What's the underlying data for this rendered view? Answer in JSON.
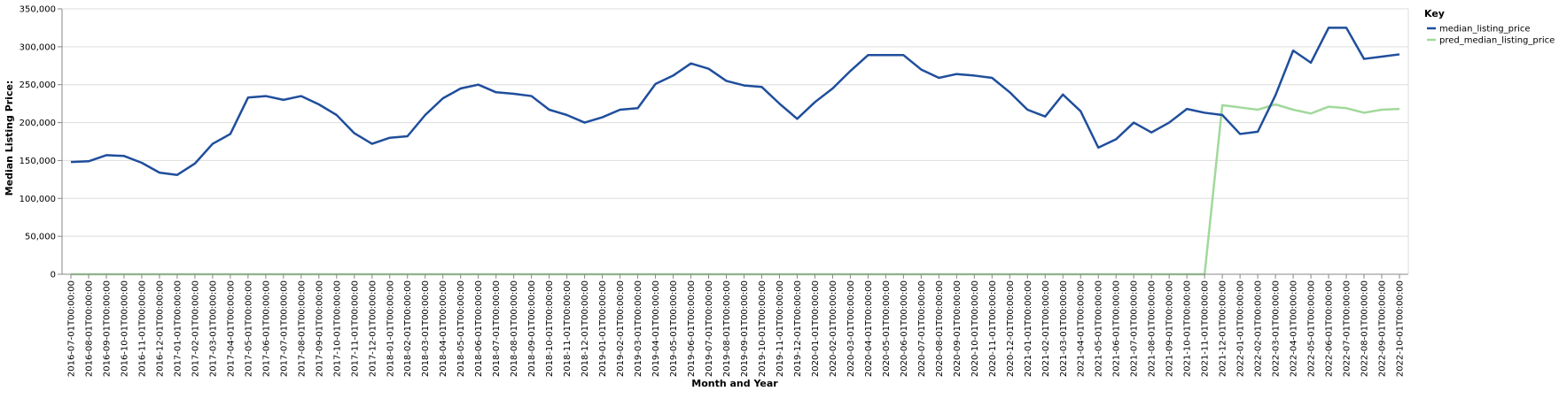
{
  "chart_data": {
    "type": "line",
    "xlabel": "Month and Year",
    "ylabel": "Median Listing Price:",
    "ylim": [
      0,
      350000
    ],
    "yticks": [
      0,
      50000,
      100000,
      150000,
      200000,
      250000,
      300000,
      350000
    ],
    "ytick_labels": [
      "0",
      "50,000",
      "100,000",
      "150,000",
      "200,000",
      "250,000",
      "300,000",
      "350,000"
    ],
    "grid": true,
    "legend": {
      "title": "Key",
      "placement": "top-right"
    },
    "x": [
      "2016-07-01T00:00:00",
      "2016-08-01T00:00:00",
      "2016-09-01T00:00:00",
      "2016-10-01T00:00:00",
      "2016-11-01T00:00:00",
      "2016-12-01T00:00:00",
      "2017-01-01T00:00:00",
      "2017-02-01T00:00:00",
      "2017-03-01T00:00:00",
      "2017-04-01T00:00:00",
      "2017-05-01T00:00:00",
      "2017-06-01T00:00:00",
      "2017-07-01T00:00:00",
      "2017-08-01T00:00:00",
      "2017-09-01T00:00:00",
      "2017-10-01T00:00:00",
      "2017-11-01T00:00:00",
      "2017-12-01T00:00:00",
      "2018-01-01T00:00:00",
      "2018-02-01T00:00:00",
      "2018-03-01T00:00:00",
      "2018-04-01T00:00:00",
      "2018-05-01T00:00:00",
      "2018-06-01T00:00:00",
      "2018-07-01T00:00:00",
      "2018-08-01T00:00:00",
      "2018-09-01T00:00:00",
      "2018-10-01T00:00:00",
      "2018-11-01T00:00:00",
      "2018-12-01T00:00:00",
      "2019-01-01T00:00:00",
      "2019-02-01T00:00:00",
      "2019-03-01T00:00:00",
      "2019-04-01T00:00:00",
      "2019-05-01T00:00:00",
      "2019-06-01T00:00:00",
      "2019-07-01T00:00:00",
      "2019-08-01T00:00:00",
      "2019-09-01T00:00:00",
      "2019-10-01T00:00:00",
      "2019-11-01T00:00:00",
      "2019-12-01T00:00:00",
      "2020-01-01T00:00:00",
      "2020-02-01T00:00:00",
      "2020-03-01T00:00:00",
      "2020-04-01T00:00:00",
      "2020-05-01T00:00:00",
      "2020-06-01T00:00:00",
      "2020-07-01T00:00:00",
      "2020-08-01T00:00:00",
      "2020-09-01T00:00:00",
      "2020-10-01T00:00:00",
      "2020-11-01T00:00:00",
      "2020-12-01T00:00:00",
      "2021-01-01T00:00:00",
      "2021-02-01T00:00:00",
      "2021-03-01T00:00:00",
      "2021-04-01T00:00:00",
      "2021-05-01T00:00:00",
      "2021-06-01T00:00:00",
      "2021-07-01T00:00:00",
      "2021-08-01T00:00:00",
      "2021-09-01T00:00:00",
      "2021-10-01T00:00:00",
      "2021-11-01T00:00:00",
      "2021-12-01T00:00:00",
      "2022-01-01T00:00:00",
      "2022-02-01T00:00:00",
      "2022-03-01T00:00:00",
      "2022-04-01T00:00:00",
      "2022-05-01T00:00:00",
      "2022-06-01T00:00:00",
      "2022-07-01T00:00:00",
      "2022-08-01T00:00:00",
      "2022-09-01T00:00:00",
      "2022-10-01T00:00:00"
    ],
    "series": [
      {
        "name": "median_listing_price",
        "color": "#1f4e9c",
        "values": [
          148000,
          149000,
          157000,
          156000,
          147000,
          134000,
          131000,
          146000,
          172000,
          185000,
          233000,
          235000,
          230000,
          235000,
          224000,
          210000,
          186000,
          172000,
          180000,
          182000,
          210000,
          232000,
          245000,
          250000,
          240000,
          238000,
          235000,
          217000,
          210000,
          200000,
          207000,
          217000,
          219000,
          251000,
          262000,
          278000,
          271000,
          255000,
          249000,
          247000,
          225000,
          205000,
          227000,
          245000,
          268000,
          289000,
          289000,
          289000,
          270000,
          259000,
          264000,
          262000,
          259000,
          240000,
          217000,
          208000,
          237000,
          215000,
          167000,
          178000,
          200000,
          187000,
          200000,
          218000,
          213000,
          210000,
          185000,
          188000,
          236000,
          295000,
          279000,
          325000,
          325000,
          284000,
          287000,
          290000
        ]
      },
      {
        "name": "pred_median_listing_price",
        "color": "#a1d99b",
        "values": [
          0,
          0,
          0,
          0,
          0,
          0,
          0,
          0,
          0,
          0,
          0,
          0,
          0,
          0,
          0,
          0,
          0,
          0,
          0,
          0,
          0,
          0,
          0,
          0,
          0,
          0,
          0,
          0,
          0,
          0,
          0,
          0,
          0,
          0,
          0,
          0,
          0,
          0,
          0,
          0,
          0,
          0,
          0,
          0,
          0,
          0,
          0,
          0,
          0,
          0,
          0,
          0,
          0,
          0,
          0,
          0,
          0,
          0,
          0,
          0,
          0,
          0,
          0,
          0,
          0,
          223000,
          220000,
          217000,
          224000,
          217000,
          212000,
          221000,
          219000,
          213000,
          217000,
          218000
        ]
      }
    ]
  }
}
